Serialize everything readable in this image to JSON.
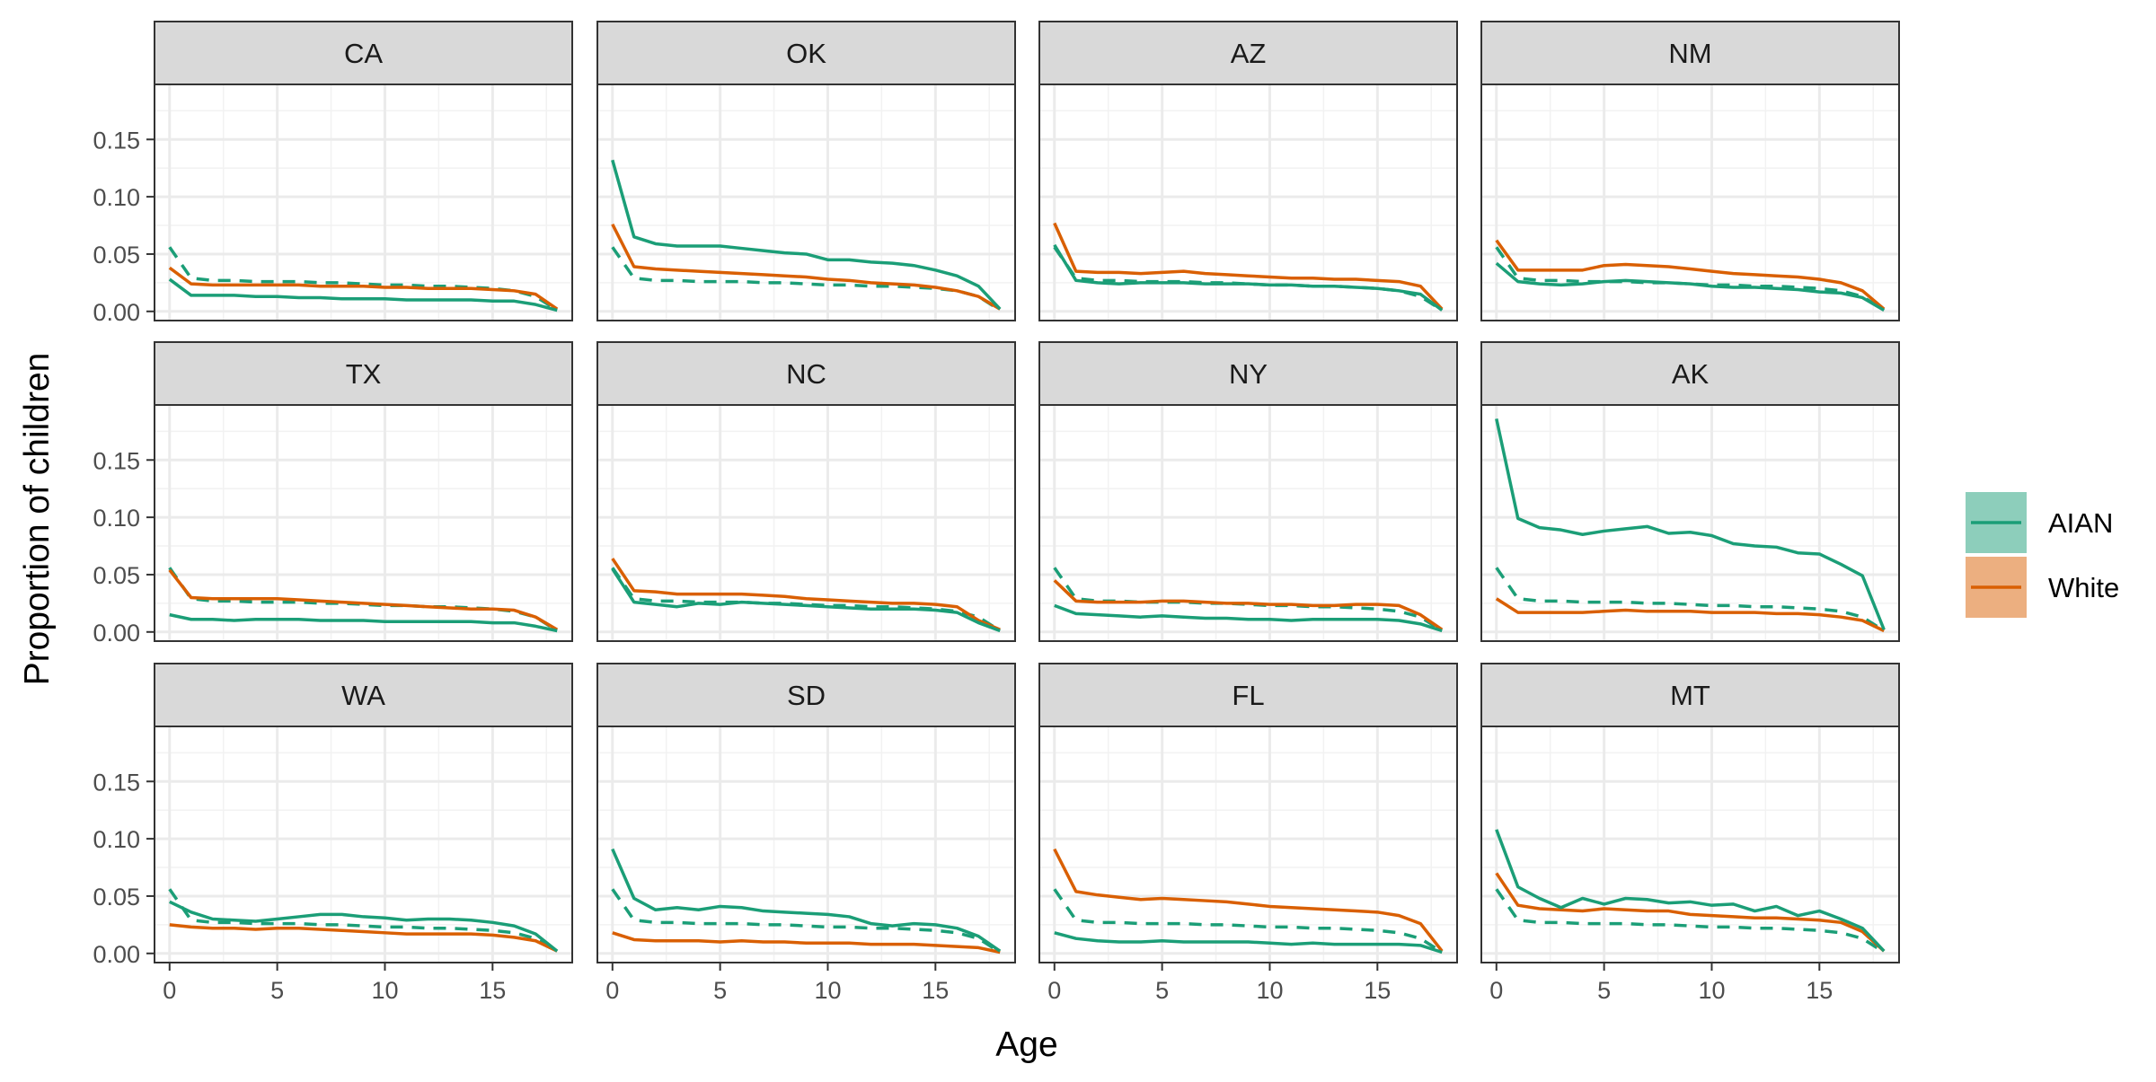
{
  "chart_data": {
    "type": "line",
    "xlabel": "Age",
    "ylabel": "Proportion of children",
    "xlim": [
      -0.7,
      18.7
    ],
    "ylim": [
      -0.008,
      0.198
    ],
    "x_ticks": [
      0,
      5,
      10,
      15
    ],
    "x_tick_labels": [
      "0",
      "5",
      "10",
      "15"
    ],
    "y_ticks": [
      0.0,
      0.05,
      0.1,
      0.15
    ],
    "y_tick_labels": [
      "0.00",
      "0.05",
      "0.10",
      "0.15"
    ],
    "grid": true,
    "legend_position": "right",
    "legend": [
      {
        "label": "AIAN",
        "color": "#1b9e77"
      },
      {
        "label": "White",
        "color": "#d95f02"
      }
    ],
    "x": [
      0,
      1,
      2,
      3,
      4,
      5,
      6,
      7,
      8,
      9,
      10,
      11,
      12,
      13,
      14,
      15,
      16,
      17,
      18
    ],
    "reference_color": "#1b9e77",
    "panels": [
      {
        "state": "CA",
        "aian": [
          0.028,
          0.014,
          0.014,
          0.014,
          0.013,
          0.013,
          0.012,
          0.012,
          0.011,
          0.011,
          0.011,
          0.01,
          0.01,
          0.01,
          0.01,
          0.009,
          0.009,
          0.006,
          0.001
        ],
        "white": [
          0.038,
          0.024,
          0.023,
          0.023,
          0.023,
          0.023,
          0.023,
          0.022,
          0.022,
          0.022,
          0.021,
          0.021,
          0.02,
          0.02,
          0.02,
          0.019,
          0.018,
          0.015,
          0.002
        ],
        "reference": [
          0.056,
          0.029,
          0.027,
          0.027,
          0.026,
          0.026,
          0.026,
          0.025,
          0.025,
          0.024,
          0.023,
          0.023,
          0.022,
          0.022,
          0.021,
          0.02,
          0.018,
          0.013,
          0.001
        ]
      },
      {
        "state": "OK",
        "aian": [
          0.132,
          0.065,
          0.059,
          0.057,
          0.057,
          0.057,
          0.055,
          0.053,
          0.051,
          0.05,
          0.045,
          0.045,
          0.043,
          0.042,
          0.04,
          0.036,
          0.031,
          0.022,
          0.002
        ],
        "white": [
          0.076,
          0.039,
          0.037,
          0.036,
          0.035,
          0.034,
          0.033,
          0.032,
          0.031,
          0.03,
          0.028,
          0.027,
          0.025,
          0.024,
          0.023,
          0.021,
          0.018,
          0.013,
          0.002
        ],
        "reference": [
          0.056,
          0.029,
          0.027,
          0.027,
          0.026,
          0.026,
          0.026,
          0.025,
          0.025,
          0.024,
          0.023,
          0.023,
          0.022,
          0.022,
          0.021,
          0.02,
          0.018,
          0.013,
          0.001
        ]
      },
      {
        "state": "AZ",
        "aian": [
          0.058,
          0.027,
          0.025,
          0.024,
          0.025,
          0.025,
          0.025,
          0.024,
          0.024,
          0.024,
          0.023,
          0.023,
          0.022,
          0.022,
          0.021,
          0.02,
          0.018,
          0.015,
          0.001
        ],
        "white": [
          0.077,
          0.035,
          0.034,
          0.034,
          0.033,
          0.034,
          0.035,
          0.033,
          0.032,
          0.031,
          0.03,
          0.029,
          0.029,
          0.028,
          0.028,
          0.027,
          0.026,
          0.022,
          0.002
        ],
        "reference": [
          0.056,
          0.029,
          0.027,
          0.027,
          0.026,
          0.026,
          0.026,
          0.025,
          0.025,
          0.024,
          0.023,
          0.023,
          0.022,
          0.022,
          0.021,
          0.02,
          0.018,
          0.013,
          0.001
        ]
      },
      {
        "state": "NM",
        "aian": [
          0.042,
          0.026,
          0.024,
          0.023,
          0.024,
          0.026,
          0.027,
          0.026,
          0.025,
          0.024,
          0.022,
          0.021,
          0.021,
          0.02,
          0.019,
          0.017,
          0.016,
          0.012,
          0.001
        ],
        "white": [
          0.062,
          0.036,
          0.036,
          0.036,
          0.036,
          0.04,
          0.041,
          0.04,
          0.039,
          0.037,
          0.035,
          0.033,
          0.032,
          0.031,
          0.03,
          0.028,
          0.025,
          0.018,
          0.002
        ],
        "reference": [
          0.056,
          0.029,
          0.027,
          0.027,
          0.026,
          0.026,
          0.026,
          0.025,
          0.025,
          0.024,
          0.023,
          0.023,
          0.022,
          0.022,
          0.021,
          0.02,
          0.018,
          0.013,
          0.001
        ]
      },
      {
        "state": "TX",
        "aian": [
          0.015,
          0.011,
          0.011,
          0.01,
          0.011,
          0.011,
          0.011,
          0.01,
          0.01,
          0.01,
          0.009,
          0.009,
          0.009,
          0.009,
          0.009,
          0.008,
          0.008,
          0.005,
          0.001
        ],
        "white": [
          0.054,
          0.03,
          0.029,
          0.029,
          0.029,
          0.029,
          0.028,
          0.027,
          0.026,
          0.025,
          0.024,
          0.023,
          0.022,
          0.021,
          0.02,
          0.02,
          0.019,
          0.013,
          0.002
        ],
        "reference": [
          0.056,
          0.029,
          0.027,
          0.027,
          0.026,
          0.026,
          0.026,
          0.025,
          0.025,
          0.024,
          0.023,
          0.023,
          0.022,
          0.022,
          0.021,
          0.02,
          0.018,
          0.013,
          0.001
        ]
      },
      {
        "state": "NC",
        "aian": [
          0.055,
          0.026,
          0.024,
          0.022,
          0.025,
          0.024,
          0.026,
          0.025,
          0.024,
          0.023,
          0.022,
          0.021,
          0.02,
          0.02,
          0.02,
          0.019,
          0.017,
          0.008,
          0.001
        ],
        "white": [
          0.064,
          0.036,
          0.035,
          0.033,
          0.033,
          0.033,
          0.033,
          0.032,
          0.031,
          0.029,
          0.028,
          0.027,
          0.026,
          0.025,
          0.025,
          0.024,
          0.022,
          0.01,
          0.002
        ],
        "reference": [
          0.056,
          0.029,
          0.027,
          0.027,
          0.026,
          0.026,
          0.026,
          0.025,
          0.025,
          0.024,
          0.023,
          0.023,
          0.022,
          0.022,
          0.021,
          0.02,
          0.018,
          0.013,
          0.001
        ]
      },
      {
        "state": "NY",
        "aian": [
          0.023,
          0.016,
          0.015,
          0.014,
          0.013,
          0.014,
          0.013,
          0.012,
          0.012,
          0.011,
          0.011,
          0.01,
          0.011,
          0.011,
          0.011,
          0.011,
          0.01,
          0.007,
          0.001
        ],
        "white": [
          0.045,
          0.027,
          0.026,
          0.026,
          0.026,
          0.027,
          0.027,
          0.026,
          0.025,
          0.025,
          0.024,
          0.024,
          0.023,
          0.023,
          0.024,
          0.024,
          0.023,
          0.015,
          0.002
        ],
        "reference": [
          0.056,
          0.029,
          0.027,
          0.027,
          0.026,
          0.026,
          0.026,
          0.025,
          0.025,
          0.024,
          0.023,
          0.023,
          0.022,
          0.022,
          0.021,
          0.02,
          0.018,
          0.013,
          0.001
        ]
      },
      {
        "state": "AK",
        "aian": [
          0.186,
          0.099,
          0.091,
          0.089,
          0.085,
          0.088,
          0.09,
          0.092,
          0.086,
          0.087,
          0.084,
          0.077,
          0.075,
          0.074,
          0.069,
          0.068,
          0.059,
          0.049,
          0.002
        ],
        "white": [
          0.029,
          0.017,
          0.017,
          0.017,
          0.017,
          0.018,
          0.019,
          0.018,
          0.018,
          0.018,
          0.017,
          0.017,
          0.017,
          0.016,
          0.016,
          0.015,
          0.013,
          0.01,
          0.001
        ],
        "reference": [
          0.056,
          0.029,
          0.027,
          0.027,
          0.026,
          0.026,
          0.026,
          0.025,
          0.025,
          0.024,
          0.023,
          0.023,
          0.022,
          0.022,
          0.021,
          0.02,
          0.018,
          0.013,
          0.001
        ]
      },
      {
        "state": "WA",
        "aian": [
          0.045,
          0.036,
          0.03,
          0.029,
          0.028,
          0.03,
          0.032,
          0.034,
          0.034,
          0.032,
          0.031,
          0.029,
          0.03,
          0.03,
          0.029,
          0.027,
          0.024,
          0.017,
          0.002
        ],
        "white": [
          0.025,
          0.023,
          0.022,
          0.022,
          0.021,
          0.022,
          0.022,
          0.021,
          0.02,
          0.019,
          0.018,
          0.017,
          0.017,
          0.017,
          0.017,
          0.016,
          0.014,
          0.011,
          0.002
        ],
        "reference": [
          0.056,
          0.029,
          0.027,
          0.027,
          0.026,
          0.026,
          0.026,
          0.025,
          0.025,
          0.024,
          0.023,
          0.023,
          0.022,
          0.022,
          0.021,
          0.02,
          0.018,
          0.013,
          0.001
        ]
      },
      {
        "state": "SD",
        "aian": [
          0.091,
          0.048,
          0.038,
          0.04,
          0.038,
          0.041,
          0.04,
          0.037,
          0.036,
          0.035,
          0.034,
          0.032,
          0.026,
          0.024,
          0.026,
          0.025,
          0.022,
          0.015,
          0.002
        ],
        "white": [
          0.018,
          0.012,
          0.011,
          0.011,
          0.011,
          0.01,
          0.011,
          0.01,
          0.01,
          0.009,
          0.009,
          0.009,
          0.008,
          0.008,
          0.008,
          0.007,
          0.006,
          0.005,
          0.001
        ],
        "reference": [
          0.056,
          0.029,
          0.027,
          0.027,
          0.026,
          0.026,
          0.026,
          0.025,
          0.025,
          0.024,
          0.023,
          0.023,
          0.022,
          0.022,
          0.021,
          0.02,
          0.018,
          0.013,
          0.001
        ]
      },
      {
        "state": "FL",
        "aian": [
          0.018,
          0.013,
          0.011,
          0.01,
          0.01,
          0.011,
          0.01,
          0.01,
          0.01,
          0.01,
          0.009,
          0.008,
          0.009,
          0.008,
          0.008,
          0.008,
          0.008,
          0.007,
          0.001
        ],
        "white": [
          0.091,
          0.054,
          0.051,
          0.049,
          0.047,
          0.048,
          0.047,
          0.046,
          0.045,
          0.043,
          0.041,
          0.04,
          0.039,
          0.038,
          0.037,
          0.036,
          0.033,
          0.026,
          0.002
        ],
        "reference": [
          0.056,
          0.029,
          0.027,
          0.027,
          0.026,
          0.026,
          0.026,
          0.025,
          0.025,
          0.024,
          0.023,
          0.023,
          0.022,
          0.022,
          0.021,
          0.02,
          0.018,
          0.013,
          0.001
        ]
      },
      {
        "state": "MT",
        "aian": [
          0.108,
          0.058,
          0.048,
          0.04,
          0.048,
          0.043,
          0.048,
          0.047,
          0.044,
          0.045,
          0.042,
          0.043,
          0.037,
          0.041,
          0.033,
          0.037,
          0.03,
          0.022,
          0.002
        ],
        "white": [
          0.07,
          0.042,
          0.039,
          0.038,
          0.037,
          0.039,
          0.038,
          0.037,
          0.037,
          0.034,
          0.033,
          0.032,
          0.031,
          0.031,
          0.03,
          0.029,
          0.027,
          0.019,
          0.002
        ],
        "reference": [
          0.056,
          0.029,
          0.027,
          0.027,
          0.026,
          0.026,
          0.026,
          0.025,
          0.025,
          0.024,
          0.023,
          0.023,
          0.022,
          0.022,
          0.021,
          0.02,
          0.018,
          0.013,
          0.001
        ]
      }
    ]
  }
}
